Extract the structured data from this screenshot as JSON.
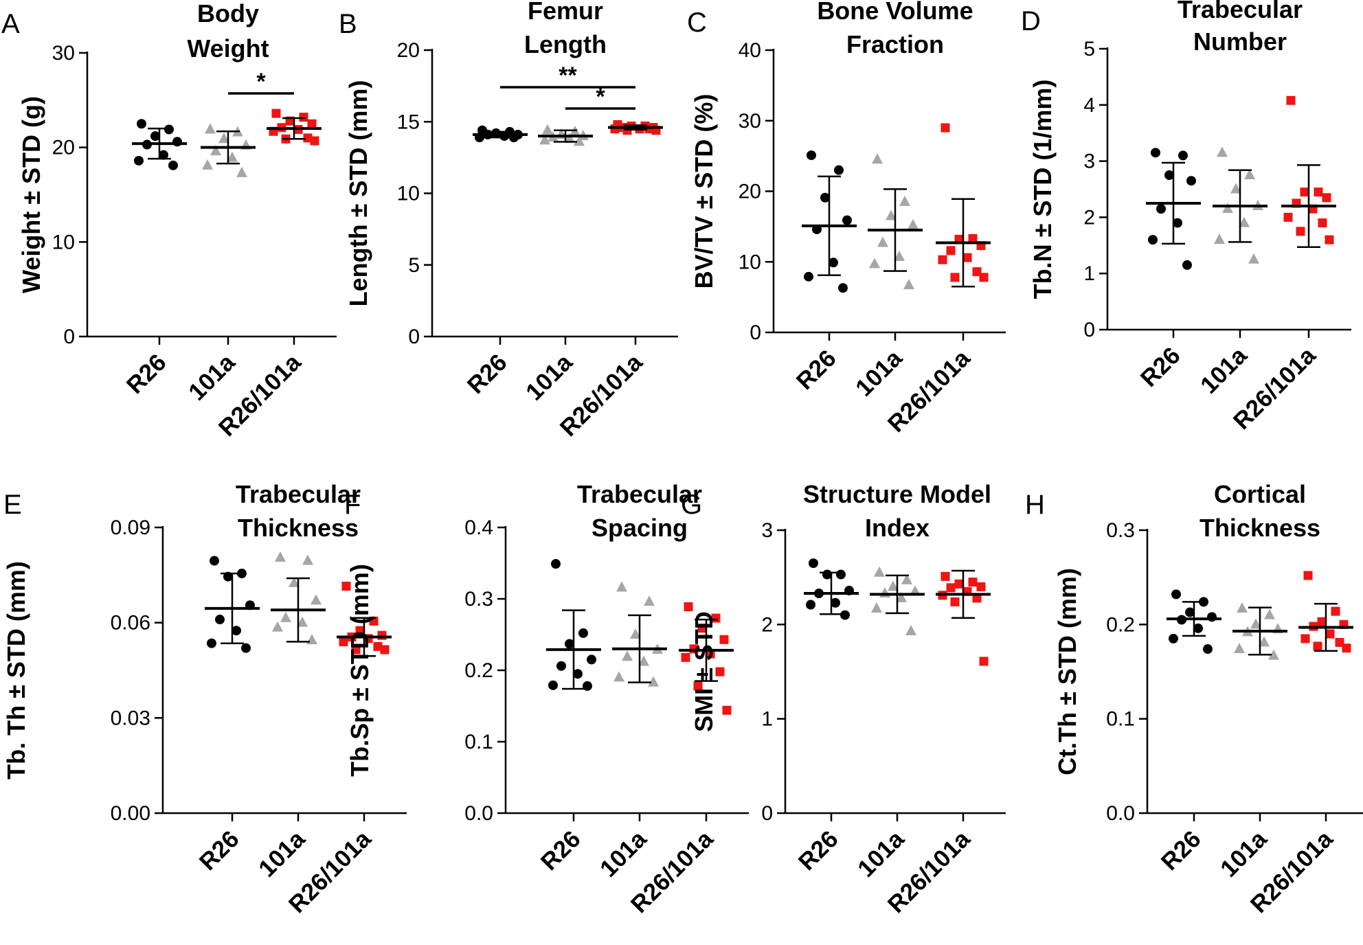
{
  "colors": {
    "R26": "#000000",
    "101a": "#a6a6a6",
    "R26/101a": "#f21313"
  },
  "chart_data": [
    {
      "type": "scatter",
      "panel": "A",
      "title": [
        "Body",
        "Weight"
      ],
      "ylabel": "Weight ± STD (g)",
      "ylim": [
        0,
        30
      ],
      "yticks": [
        0,
        10,
        20,
        30
      ],
      "tick_labels": [
        "0",
        "10",
        "20",
        "30"
      ],
      "categories": [
        "R26",
        "101a",
        "R26/101a"
      ],
      "series": [
        {
          "name": "R26",
          "marker": "circle",
          "mean": 20.4,
          "sd": 1.6,
          "values": [
            22.5,
            21.9,
            21.2,
            20.6,
            20.3,
            19.2,
            18.6,
            18.1
          ]
        },
        {
          "name": "101a",
          "marker": "triangle",
          "mean": 20.0,
          "sd": 1.7,
          "values": [
            21.9,
            21.6,
            20.9,
            20.2,
            19.6,
            18.9,
            18.1,
            17.3
          ]
        },
        {
          "name": "R26/101a",
          "marker": "square",
          "mean": 22.0,
          "sd": 1.1,
          "values": [
            23.6,
            23.2,
            22.8,
            22.5,
            22.1,
            21.9,
            21.7,
            21.0,
            20.9,
            20.7
          ]
        }
      ],
      "brackets": [
        {
          "from": 1,
          "to": 2,
          "label": "*"
        }
      ]
    },
    {
      "type": "scatter",
      "panel": "B",
      "title": [
        "Femur",
        "Length"
      ],
      "ylabel": "Length ± STD (mm)",
      "ylim": [
        0,
        20
      ],
      "yticks": [
        0,
        5,
        10,
        15,
        20
      ],
      "tick_labels": [
        "0",
        "5",
        "10",
        "15",
        "20"
      ],
      "categories": [
        "R26",
        "101a",
        "R26/101a"
      ],
      "series": [
        {
          "name": "R26",
          "marker": "circle",
          "mean": 14.1,
          "sd": 0.2,
          "values": [
            14.4,
            14.3,
            14.2,
            14.1,
            14.1,
            14.0,
            13.9,
            13.9
          ]
        },
        {
          "name": "101a",
          "marker": "triangle",
          "mean": 14.0,
          "sd": 0.4,
          "values": [
            14.4,
            14.3,
            14.1,
            14.0,
            13.9,
            13.8,
            13.7,
            13.6
          ]
        },
        {
          "name": "R26/101a",
          "marker": "square",
          "mean": 14.6,
          "sd": 0.15,
          "values": [
            14.8,
            14.7,
            14.7,
            14.6,
            14.6,
            14.5,
            14.5,
            14.5,
            14.4,
            14.4
          ]
        }
      ],
      "brackets": [
        {
          "from": 0,
          "to": 2,
          "label": "**"
        },
        {
          "from": 1,
          "to": 2,
          "label": "*"
        }
      ]
    },
    {
      "type": "scatter",
      "panel": "C",
      "title": [
        "Bone Volume",
        "Fraction"
      ],
      "ylabel": "BV/TV ± STD (%)",
      "ylim": [
        0,
        40
      ],
      "yticks": [
        0,
        10,
        20,
        30,
        40
      ],
      "tick_labels": [
        "0",
        "10",
        "20",
        "30",
        "40"
      ],
      "categories": [
        "R26",
        "101a",
        "R26/101a"
      ],
      "series": [
        {
          "name": "R26",
          "marker": "circle",
          "mean": 15.1,
          "sd": 7.0,
          "values": [
            25.1,
            23.0,
            19.1,
            15.9,
            14.6,
            9.9,
            7.9,
            6.3
          ]
        },
        {
          "name": "101a",
          "marker": "triangle",
          "mean": 14.5,
          "sd": 5.8,
          "values": [
            24.5,
            18.5,
            16.5,
            15.2,
            12.7,
            10.7,
            9.7,
            6.7
          ]
        },
        {
          "name": "R26/101a",
          "marker": "square",
          "mean": 12.7,
          "sd": 6.2,
          "values": [
            29.0,
            13.3,
            13.2,
            12.3,
            11.6,
            10.6,
            10.3,
            8.6,
            7.8,
            7.8
          ]
        }
      ],
      "brackets": []
    },
    {
      "type": "scatter",
      "panel": "D",
      "title": [
        "Trabecular",
        "Number"
      ],
      "ylabel": "Tb.N ± STD (1/mm)",
      "ylim": [
        0,
        5
      ],
      "yticks": [
        0,
        1,
        2,
        3,
        4,
        5
      ],
      "tick_labels": [
        "0",
        "1",
        "2",
        "3",
        "4",
        "5"
      ],
      "categories": [
        "R26",
        "101a",
        "R26/101a"
      ],
      "series": [
        {
          "name": "R26",
          "marker": "circle",
          "mean": 2.25,
          "sd": 0.72,
          "values": [
            3.15,
            3.1,
            2.75,
            2.65,
            2.15,
            1.9,
            1.6,
            1.15
          ]
        },
        {
          "name": "101a",
          "marker": "triangle",
          "mean": 2.2,
          "sd": 0.64,
          "values": [
            3.15,
            2.75,
            2.5,
            2.2,
            2.15,
            1.9,
            1.6,
            1.25
          ]
        },
        {
          "name": "R26/101a",
          "marker": "square",
          "mean": 2.2,
          "sd": 0.73,
          "values": [
            4.08,
            2.45,
            2.45,
            2.35,
            2.25,
            2.15,
            2.0,
            1.9,
            1.75,
            1.6
          ]
        }
      ],
      "brackets": []
    },
    {
      "type": "scatter",
      "panel": "E",
      "title": [
        "Trabecular",
        "Thickness"
      ],
      "ylabel": "Tb. Th ± STD  (mm)",
      "ylim": [
        0,
        0.09
      ],
      "yticks": [
        0,
        0.03,
        0.06,
        0.09
      ],
      "tick_labels": [
        "0.00",
        "0.03",
        "0.06",
        "0.09"
      ],
      "categories": [
        "R26",
        "101a",
        "R26/101a"
      ],
      "series": [
        {
          "name": "R26",
          "marker": "circle",
          "mean": 0.0645,
          "sd": 0.011,
          "values": [
            0.0795,
            0.0755,
            0.0745,
            0.0655,
            0.061,
            0.0575,
            0.0535,
            0.052
          ]
        },
        {
          "name": "101a",
          "marker": "triangle",
          "mean": 0.064,
          "sd": 0.01,
          "values": [
            0.0805,
            0.0795,
            0.0725,
            0.067,
            0.0615,
            0.06,
            0.0585,
            0.0545
          ]
        },
        {
          "name": "R26/101a",
          "marker": "square",
          "mean": 0.0555,
          "sd": 0.006,
          "values": [
            0.0715,
            0.0605,
            0.0575,
            0.056,
            0.0555,
            0.055,
            0.054,
            0.0525,
            0.0515,
            0.0515
          ]
        }
      ],
      "brackets": []
    },
    {
      "type": "scatter",
      "panel": "F",
      "title": [
        "Trabecular",
        "Spacing"
      ],
      "ylabel": "Tb.Sp ± STD (mm)",
      "ylim": [
        0,
        0.4
      ],
      "yticks": [
        0,
        0.1,
        0.2,
        0.3,
        0.4
      ],
      "tick_labels": [
        "0.0",
        "0.1",
        "0.2",
        "0.3",
        "0.4"
      ],
      "categories": [
        "R26",
        "101a",
        "R26/101a"
      ],
      "series": [
        {
          "name": "R26",
          "marker": "circle",
          "mean": 0.229,
          "sd": 0.055,
          "values": [
            0.349,
            0.252,
            0.237,
            0.215,
            0.206,
            0.195,
            0.179,
            0.178
          ]
        },
        {
          "name": "101a",
          "marker": "triangle",
          "mean": 0.23,
          "sd": 0.047,
          "values": [
            0.316,
            0.296,
            0.25,
            0.229,
            0.219,
            0.212,
            0.19,
            0.183
          ]
        },
        {
          "name": "R26/101a",
          "marker": "square",
          "mean": 0.228,
          "sd": 0.043,
          "values": [
            0.289,
            0.273,
            0.259,
            0.243,
            0.23,
            0.223,
            0.218,
            0.198,
            0.178,
            0.144
          ]
        }
      ],
      "brackets": []
    },
    {
      "type": "scatter",
      "panel": "G",
      "title": [
        "Structure Model",
        "Index"
      ],
      "ylabel": "SMI ± STD",
      "ylim": [
        0,
        3
      ],
      "yticks": [
        0,
        1,
        2,
        3
      ],
      "tick_labels": [
        "0",
        "1",
        "2",
        "3"
      ],
      "categories": [
        "R26",
        "101a",
        "R26/101a"
      ],
      "series": [
        {
          "name": "R26",
          "marker": "circle",
          "mean": 2.33,
          "sd": 0.22,
          "values": [
            2.65,
            2.53,
            2.53,
            2.36,
            2.33,
            2.23,
            2.21,
            2.1
          ]
        },
        {
          "name": "101a",
          "marker": "triangle",
          "mean": 2.32,
          "sd": 0.2,
          "values": [
            2.55,
            2.47,
            2.4,
            2.35,
            2.33,
            2.28,
            2.17,
            1.93
          ]
        },
        {
          "name": "R26/101a",
          "marker": "square",
          "mean": 2.32,
          "sd": 0.25,
          "values": [
            2.51,
            2.45,
            2.43,
            2.4,
            2.39,
            2.35,
            2.31,
            2.28,
            2.24,
            1.61
          ]
        }
      ],
      "brackets": []
    },
    {
      "type": "scatter",
      "panel": "H",
      "title": [
        "Cortical",
        "Thickness"
      ],
      "ylabel": "Ct.Th ± STD (mm)",
      "ylim": [
        0,
        0.3
      ],
      "yticks": [
        0,
        0.1,
        0.2,
        0.3
      ],
      "tick_labels": [
        "0.0",
        "0.1",
        "0.2",
        "0.3"
      ],
      "categories": [
        "R26",
        "101a",
        "R26/101a"
      ],
      "series": [
        {
          "name": "R26",
          "marker": "circle",
          "mean": 0.206,
          "sd": 0.018,
          "values": [
            0.232,
            0.224,
            0.213,
            0.208,
            0.205,
            0.196,
            0.185,
            0.174
          ]
        },
        {
          "name": "101a",
          "marker": "triangle",
          "mean": 0.193,
          "sd": 0.025,
          "values": [
            0.217,
            0.21,
            0.2,
            0.195,
            0.192,
            0.181,
            0.174,
            0.167
          ]
        },
        {
          "name": "R26/101a",
          "marker": "square",
          "mean": 0.197,
          "sd": 0.025,
          "values": [
            0.252,
            0.214,
            0.203,
            0.2,
            0.198,
            0.19,
            0.185,
            0.181,
            0.177,
            0.175
          ]
        }
      ],
      "brackets": []
    }
  ]
}
